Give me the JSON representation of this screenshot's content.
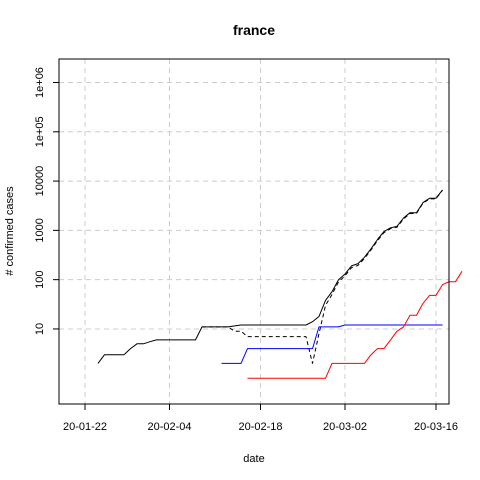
{
  "chart_data": {
    "type": "line",
    "title": "france",
    "xlabel": "date",
    "ylabel": "# confirmed cases",
    "y_scale": "log10",
    "grid": true,
    "x_ticks": [
      "20-01-22",
      "20-02-04",
      "20-02-18",
      "20-03-02",
      "20-03-16"
    ],
    "y_ticks": [
      "10",
      "100",
      "1000",
      "10000",
      "1e+05",
      "1e+06"
    ],
    "xlim": [
      "2020-01-18",
      "2020-03-18"
    ],
    "ylim": [
      0.3,
      3000000
    ],
    "series": [
      {
        "color": "#000000",
        "dash": "solid",
        "points": [
          [
            "2020-01-24",
            2
          ],
          [
            "2020-01-25",
            3
          ],
          [
            "2020-01-26",
            3
          ],
          [
            "2020-01-27",
            3
          ],
          [
            "2020-01-28",
            3
          ],
          [
            "2020-01-29",
            4
          ],
          [
            "2020-01-30",
            5
          ],
          [
            "2020-01-31",
            5
          ],
          [
            "2020-02-01",
            5.5
          ],
          [
            "2020-02-02",
            6
          ],
          [
            "2020-02-03",
            6
          ],
          [
            "2020-02-05",
            6
          ],
          [
            "2020-02-07",
            6
          ],
          [
            "2020-02-08",
            6
          ],
          [
            "2020-02-09",
            11
          ],
          [
            "2020-02-13",
            11
          ],
          [
            "2020-02-15",
            12
          ],
          [
            "2020-02-21",
            12
          ],
          [
            "2020-02-25",
            12
          ],
          [
            "2020-02-26",
            14
          ],
          [
            "2020-02-27",
            18
          ],
          [
            "2020-02-28",
            38
          ],
          [
            "2020-02-29",
            57
          ],
          [
            "2020-03-01",
            100
          ],
          [
            "2020-03-02",
            130
          ],
          [
            "2020-03-03",
            190
          ],
          [
            "2020-03-04",
            212
          ],
          [
            "2020-03-05",
            285
          ],
          [
            "2020-03-06",
            423
          ],
          [
            "2020-03-07",
            653
          ],
          [
            "2020-03-08",
            949
          ],
          [
            "2020-03-09",
            1126
          ],
          [
            "2020-03-10",
            1209
          ],
          [
            "2020-03-11",
            1784
          ],
          [
            "2020-03-12",
            2281
          ],
          [
            "2020-03-13",
            2284
          ],
          [
            "2020-03-14",
            3661
          ],
          [
            "2020-03-15",
            4469
          ],
          [
            "2020-03-16",
            4499
          ],
          [
            "2020-03-17",
            6633
          ]
        ]
      },
      {
        "color": "#000000",
        "dash": "dashed",
        "points": [
          [
            "2020-02-09",
            11
          ],
          [
            "2020-02-13",
            11
          ],
          [
            "2020-02-14",
            9
          ],
          [
            "2020-02-15",
            9
          ],
          [
            "2020-02-16",
            7
          ],
          [
            "2020-02-25",
            7
          ],
          [
            "2020-02-26",
            2
          ],
          [
            "2020-02-27",
            8
          ],
          [
            "2020-02-28",
            30
          ],
          [
            "2020-02-29",
            50
          ],
          [
            "2020-03-01",
            90
          ],
          [
            "2020-03-02",
            120
          ],
          [
            "2020-03-03",
            175
          ],
          [
            "2020-03-04",
            195
          ],
          [
            "2020-03-05",
            270
          ],
          [
            "2020-03-06",
            400
          ],
          [
            "2020-03-07",
            620
          ],
          [
            "2020-03-08",
            900
          ],
          [
            "2020-03-09",
            1080
          ],
          [
            "2020-03-10",
            1160
          ],
          [
            "2020-03-11",
            1700
          ],
          [
            "2020-03-12",
            2200
          ],
          [
            "2020-03-13",
            2210
          ],
          [
            "2020-03-14",
            3560
          ],
          [
            "2020-03-15",
            4350
          ],
          [
            "2020-03-16",
            4380
          ],
          [
            "2020-03-17",
            6500
          ]
        ]
      },
      {
        "color": "#0000ff",
        "dash": "solid",
        "points": [
          [
            "2020-02-12",
            2
          ],
          [
            "2020-02-15",
            2
          ],
          [
            "2020-02-16",
            4
          ],
          [
            "2020-02-26",
            4
          ],
          [
            "2020-02-27",
            11
          ],
          [
            "2020-03-01",
            11
          ],
          [
            "2020-03-02",
            12
          ],
          [
            "2020-03-17",
            12
          ]
        ]
      },
      {
        "color": "#ff0000",
        "dash": "solid",
        "points": [
          [
            "2020-02-16",
            1
          ],
          [
            "2020-02-28",
            1
          ],
          [
            "2020-02-29",
            2
          ],
          [
            "2020-03-05",
            2
          ],
          [
            "2020-03-06",
            3
          ],
          [
            "2020-03-07",
            4
          ],
          [
            "2020-03-08",
            4
          ],
          [
            "2020-03-09",
            6
          ],
          [
            "2020-03-10",
            9
          ],
          [
            "2020-03-11",
            11
          ],
          [
            "2020-03-12",
            19
          ],
          [
            "2020-03-13",
            19
          ],
          [
            "2020-03-14",
            33
          ],
          [
            "2020-03-15",
            48
          ],
          [
            "2020-03-16",
            48
          ],
          [
            "2020-03-17",
            79
          ],
          [
            "2020-03-18",
            91
          ],
          [
            "2020-03-19",
            91
          ],
          [
            "2020-03-20",
            148
          ]
        ]
      }
    ]
  }
}
